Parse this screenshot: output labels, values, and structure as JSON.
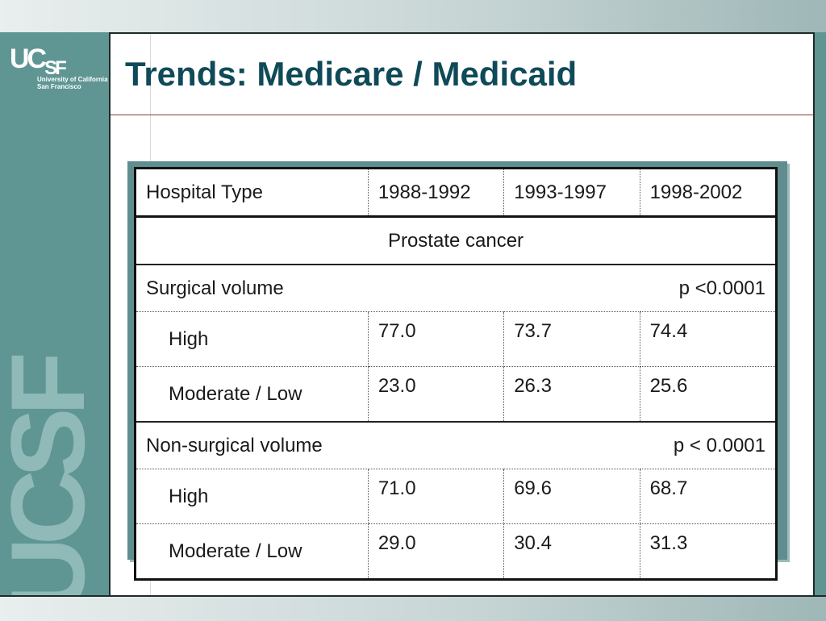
{
  "slide": {
    "title": "Trends: Medicare / Medicaid"
  },
  "logo": {
    "mark_main": "UC",
    "mark_sub": "SF",
    "line1": "University of California",
    "line2": "San Francisco",
    "watermark": "UCSF"
  },
  "colors": {
    "sidebar": "#5f9694",
    "title": "#0f4a58",
    "table_frame": "#5f8d90"
  },
  "table": {
    "headers": [
      "Hospital Type",
      "1988-1992",
      "1993-1997",
      "1998-2002"
    ],
    "section_title": "Prostate cancer",
    "groups": [
      {
        "label": "Surgical volume",
        "p_value": "p <0.0001",
        "rows": [
          {
            "label": "High",
            "values": [
              "77.0",
              "73.7",
              "74.4"
            ]
          },
          {
            "label": "Moderate / Low",
            "values": [
              "23.0",
              "26.3",
              "25.6"
            ]
          }
        ]
      },
      {
        "label": "Non-surgical volume",
        "p_value": "p < 0.0001",
        "rows": [
          {
            "label": "High",
            "values": [
              "71.0",
              "69.6",
              "68.7"
            ]
          },
          {
            "label": "Moderate / Low",
            "values": [
              "29.0",
              "30.4",
              "31.3"
            ]
          }
        ]
      }
    ]
  }
}
